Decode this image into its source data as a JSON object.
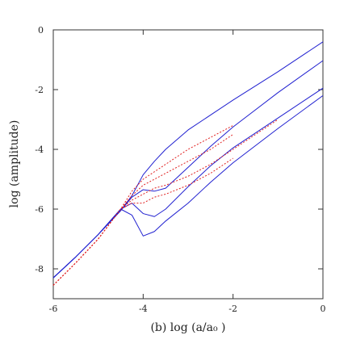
{
  "chart_data": {
    "type": "line",
    "xlabel": "(b)  log  (a/a₀ )",
    "ylabel": "log  (amplitude)",
    "x": [
      -6,
      -5.5,
      -5,
      -4.5,
      -4.25,
      -4,
      -3.75,
      -3.5,
      -3,
      -2.5,
      -2,
      -1,
      0
    ],
    "xlim": [
      -6,
      0
    ],
    "ylim": [
      -9,
      0
    ],
    "xticks": [
      -6,
      -4,
      -2,
      0
    ],
    "yticks": [
      0,
      -2,
      -4,
      -6,
      -8
    ],
    "series": [
      {
        "color": "#2020d0",
        "dash": false,
        "values": [
          -8.3,
          -7.6,
          -6.85,
          -6.05,
          -5.55,
          -4.85,
          -4.4,
          -4.0,
          -3.35,
          -2.85,
          -2.35,
          -1.4,
          -0.4
        ]
      },
      {
        "color": "#2020d0",
        "dash": false,
        "values": [
          -8.3,
          -7.6,
          -6.85,
          -6.05,
          -5.6,
          -5.35,
          -5.4,
          -5.3,
          -4.6,
          -3.9,
          -3.25,
          -2.1,
          -1.03
        ]
      },
      {
        "color": "#2020d0",
        "dash": false,
        "values": [
          -8.3,
          -7.6,
          -6.85,
          -6.0,
          -5.8,
          -6.15,
          -6.25,
          -6.0,
          -5.25,
          -4.55,
          -3.95,
          -2.95,
          -1.95
        ]
      },
      {
        "color": "#2020d0",
        "dash": false,
        "values": [
          -8.3,
          -7.6,
          -6.85,
          -6.0,
          -6.2,
          -6.9,
          -6.75,
          -6.4,
          -5.8,
          -5.1,
          -4.45,
          -3.3,
          -2.2
        ]
      },
      {
        "color": "#e02020",
        "dash": true,
        "values": [
          -8.55,
          -7.8,
          -7.0,
          -6.0,
          -5.4,
          -5.0,
          -4.75,
          -4.5,
          -4.0,
          -3.6,
          -3.2,
          null,
          null
        ]
      },
      {
        "color": "#e02020",
        "dash": true,
        "values": [
          -8.55,
          -7.8,
          -7.0,
          -6.0,
          -5.55,
          -5.2,
          -5.0,
          -4.8,
          -4.4,
          -4.0,
          -3.5,
          null,
          null
        ]
      },
      {
        "color": "#e02020",
        "dash": true,
        "values": [
          -8.55,
          -7.8,
          -7.0,
          -6.0,
          -5.7,
          -5.5,
          -5.3,
          -5.2,
          -4.9,
          -4.5,
          -4.0,
          -3.0,
          null
        ]
      },
      {
        "color": "#e02020",
        "dash": true,
        "values": [
          -8.55,
          -7.8,
          -7.0,
          -6.0,
          -5.8,
          -5.8,
          -5.6,
          -5.5,
          -5.2,
          -4.8,
          -4.3,
          null,
          null
        ]
      }
    ]
  }
}
